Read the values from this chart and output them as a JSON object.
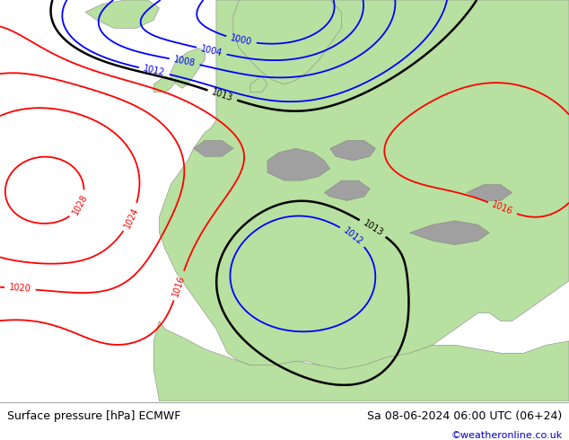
{
  "title_left": "Surface pressure [hPa] ECMWF",
  "title_right": "Sa 08-06-2024 06:00 UTC (06+24)",
  "watermark": "©weatheronline.co.uk",
  "sea_color": "#d8d8d8",
  "land_color": "#b8e0a0",
  "mountain_color": "#a0a0a0",
  "figsize": [
    6.34,
    4.9
  ],
  "dpi": 100,
  "bottom_bar_color": "#ffffff",
  "text_color": "#000000",
  "watermark_color": "#0000cc",
  "bottom_bar_height": 0.088
}
